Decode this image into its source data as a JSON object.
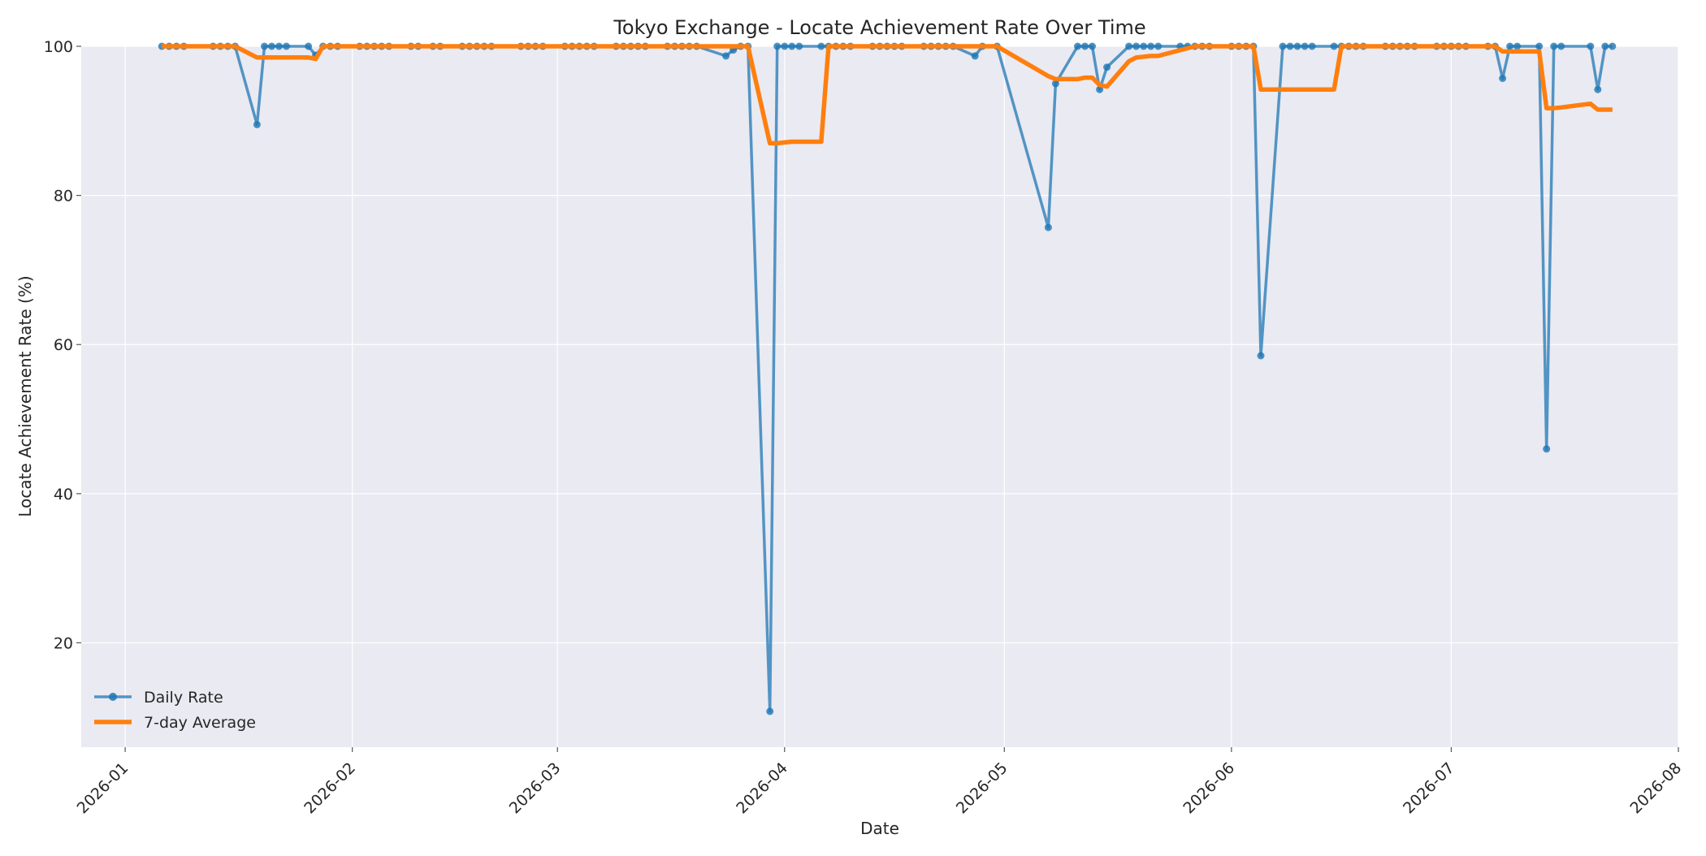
{
  "chart_data": {
    "type": "line",
    "title": "Tokyo Exchange - Locate Achievement Rate Over Time",
    "xlabel": "Date",
    "ylabel": "Locate Achievement Rate (%)",
    "xlim": [
      "2025-12-26",
      "2026-08-01"
    ],
    "ylim": [
      6,
      100
    ],
    "x_ticks": [
      "2026-01-01",
      "2026-02-01",
      "2026-03-01",
      "2026-04-01",
      "2026-05-01",
      "2026-06-01",
      "2026-07-01",
      "2026-08-01"
    ],
    "x_tick_labels": [
      "2026-01",
      "2026-02",
      "2026-03",
      "2026-04",
      "2026-05",
      "2026-06",
      "2026-07",
      "2026-08"
    ],
    "y_ticks": [
      20,
      40,
      60,
      80,
      100
    ],
    "y_tick_labels": [
      "20",
      "40",
      "60",
      "80",
      "100"
    ],
    "grid": true,
    "legend_position": "bottom-left",
    "series": [
      {
        "name": "Daily Rate",
        "color": "#1f77b4",
        "marker": "circle",
        "points": [
          [
            "2026-01-06",
            100
          ],
          [
            "2026-01-07",
            100
          ],
          [
            "2026-01-08",
            100
          ],
          [
            "2026-01-09",
            100
          ],
          [
            "2026-01-13",
            100
          ],
          [
            "2026-01-14",
            100
          ],
          [
            "2026-01-15",
            100
          ],
          [
            "2026-01-16",
            100
          ],
          [
            "2026-01-19",
            89.5
          ],
          [
            "2026-01-20",
            100
          ],
          [
            "2026-01-21",
            100
          ],
          [
            "2026-01-22",
            100
          ],
          [
            "2026-01-23",
            100
          ],
          [
            "2026-01-26",
            100
          ],
          [
            "2026-01-27",
            98.8
          ],
          [
            "2026-01-28",
            100
          ],
          [
            "2026-01-29",
            100
          ],
          [
            "2026-01-30",
            100
          ],
          [
            "2026-02-02",
            100
          ],
          [
            "2026-02-03",
            100
          ],
          [
            "2026-02-04",
            100
          ],
          [
            "2026-02-05",
            100
          ],
          [
            "2026-02-06",
            100
          ],
          [
            "2026-02-09",
            100
          ],
          [
            "2026-02-10",
            100
          ],
          [
            "2026-02-12",
            100
          ],
          [
            "2026-02-13",
            100
          ],
          [
            "2026-02-16",
            100
          ],
          [
            "2026-02-17",
            100
          ],
          [
            "2026-02-18",
            100
          ],
          [
            "2026-02-19",
            100
          ],
          [
            "2026-02-20",
            100
          ],
          [
            "2026-02-24",
            100
          ],
          [
            "2026-02-25",
            100
          ],
          [
            "2026-02-26",
            100
          ],
          [
            "2026-02-27",
            100
          ],
          [
            "2026-03-02",
            100
          ],
          [
            "2026-03-03",
            100
          ],
          [
            "2026-03-04",
            100
          ],
          [
            "2026-03-05",
            100
          ],
          [
            "2026-03-06",
            100
          ],
          [
            "2026-03-09",
            100
          ],
          [
            "2026-03-10",
            100
          ],
          [
            "2026-03-11",
            100
          ],
          [
            "2026-03-12",
            100
          ],
          [
            "2026-03-13",
            100
          ],
          [
            "2026-03-16",
            100
          ],
          [
            "2026-03-17",
            100
          ],
          [
            "2026-03-18",
            100
          ],
          [
            "2026-03-19",
            100
          ],
          [
            "2026-03-20",
            100
          ],
          [
            "2026-03-24",
            98.7
          ],
          [
            "2026-03-25",
            99.5
          ],
          [
            "2026-03-26",
            100
          ],
          [
            "2026-03-27",
            100
          ],
          [
            "2026-03-30",
            10.8
          ],
          [
            "2026-03-31",
            100
          ],
          [
            "2026-04-01",
            100
          ],
          [
            "2026-04-02",
            100
          ],
          [
            "2026-04-03",
            100
          ],
          [
            "2026-04-06",
            100
          ],
          [
            "2026-04-07",
            100
          ],
          [
            "2026-04-08",
            100
          ],
          [
            "2026-04-09",
            100
          ],
          [
            "2026-04-10",
            100
          ],
          [
            "2026-04-13",
            100
          ],
          [
            "2026-04-14",
            100
          ],
          [
            "2026-04-15",
            100
          ],
          [
            "2026-04-16",
            100
          ],
          [
            "2026-04-17",
            100
          ],
          [
            "2026-04-20",
            100
          ],
          [
            "2026-04-21",
            100
          ],
          [
            "2026-04-22",
            100
          ],
          [
            "2026-04-23",
            100
          ],
          [
            "2026-04-24",
            100
          ],
          [
            "2026-04-27",
            98.7
          ],
          [
            "2026-04-28",
            100
          ],
          [
            "2026-04-30",
            100
          ],
          [
            "2026-05-07",
            75.7
          ],
          [
            "2026-05-08",
            95
          ],
          [
            "2026-05-11",
            100
          ],
          [
            "2026-05-12",
            100
          ],
          [
            "2026-05-13",
            100
          ],
          [
            "2026-05-14",
            94.2
          ],
          [
            "2026-05-15",
            97.2
          ],
          [
            "2026-05-18",
            100
          ],
          [
            "2026-05-19",
            100
          ],
          [
            "2026-05-20",
            100
          ],
          [
            "2026-05-21",
            100
          ],
          [
            "2026-05-22",
            100
          ],
          [
            "2026-05-25",
            100
          ],
          [
            "2026-05-26",
            100
          ],
          [
            "2026-05-27",
            100
          ],
          [
            "2026-05-28",
            100
          ],
          [
            "2026-05-29",
            100
          ],
          [
            "2026-06-01",
            100
          ],
          [
            "2026-06-02",
            100
          ],
          [
            "2026-06-03",
            100
          ],
          [
            "2026-06-04",
            100
          ],
          [
            "2026-06-05",
            58.5
          ],
          [
            "2026-06-08",
            100
          ],
          [
            "2026-06-09",
            100
          ],
          [
            "2026-06-10",
            100
          ],
          [
            "2026-06-11",
            100
          ],
          [
            "2026-06-12",
            100
          ],
          [
            "2026-06-15",
            100
          ],
          [
            "2026-06-16",
            100
          ],
          [
            "2026-06-17",
            100
          ],
          [
            "2026-06-18",
            100
          ],
          [
            "2026-06-19",
            100
          ],
          [
            "2026-06-22",
            100
          ],
          [
            "2026-06-23",
            100
          ],
          [
            "2026-06-24",
            100
          ],
          [
            "2026-06-25",
            100
          ],
          [
            "2026-06-26",
            100
          ],
          [
            "2026-06-29",
            100
          ],
          [
            "2026-06-30",
            100
          ],
          [
            "2026-07-01",
            100
          ],
          [
            "2026-07-02",
            100
          ],
          [
            "2026-07-03",
            100
          ],
          [
            "2026-07-06",
            100
          ],
          [
            "2026-07-07",
            100
          ],
          [
            "2026-07-08",
            95.7
          ],
          [
            "2026-07-09",
            100
          ],
          [
            "2026-07-10",
            100
          ],
          [
            "2026-07-13",
            100
          ],
          [
            "2026-07-14",
            46
          ],
          [
            "2026-07-15",
            100
          ],
          [
            "2026-07-16",
            100
          ],
          [
            "2026-07-20",
            100
          ],
          [
            "2026-07-21",
            94.2
          ],
          [
            "2026-07-22",
            100
          ],
          [
            "2026-07-23",
            100
          ]
        ]
      },
      {
        "name": "7-day Average",
        "color": "#ff7f0e",
        "points": [
          [
            "2026-01-06",
            100
          ],
          [
            "2026-01-16",
            100
          ],
          [
            "2026-01-19",
            98.5
          ],
          [
            "2026-01-26",
            98.5
          ],
          [
            "2026-01-27",
            98.3
          ],
          [
            "2026-01-28",
            100
          ],
          [
            "2026-03-27",
            100
          ],
          [
            "2026-03-30",
            87
          ],
          [
            "2026-03-31",
            87
          ],
          [
            "2026-04-01",
            87.1
          ],
          [
            "2026-04-02",
            87.2
          ],
          [
            "2026-04-06",
            87.2
          ],
          [
            "2026-04-07",
            100
          ],
          [
            "2026-04-30",
            100
          ],
          [
            "2026-05-07",
            96
          ],
          [
            "2026-05-08",
            95.6
          ],
          [
            "2026-05-11",
            95.6
          ],
          [
            "2026-05-12",
            95.8
          ],
          [
            "2026-05-13",
            95.8
          ],
          [
            "2026-05-14",
            94.8
          ],
          [
            "2026-05-15",
            94.6
          ],
          [
            "2026-05-18",
            98
          ],
          [
            "2026-05-19",
            98.5
          ],
          [
            "2026-05-21",
            98.7
          ],
          [
            "2026-05-22",
            98.7
          ],
          [
            "2026-05-27",
            100
          ],
          [
            "2026-06-04",
            100
          ],
          [
            "2026-06-05",
            94.2
          ],
          [
            "2026-06-15",
            94.2
          ],
          [
            "2026-06-16",
            100
          ],
          [
            "2026-07-07",
            100
          ],
          [
            "2026-07-08",
            99.3
          ],
          [
            "2026-07-13",
            99.3
          ],
          [
            "2026-07-14",
            91.7
          ],
          [
            "2026-07-15",
            91.7
          ],
          [
            "2026-07-16",
            91.8
          ],
          [
            "2026-07-20",
            92.3
          ],
          [
            "2026-07-21",
            91.5
          ],
          [
            "2026-07-23",
            91.5
          ]
        ]
      }
    ]
  }
}
